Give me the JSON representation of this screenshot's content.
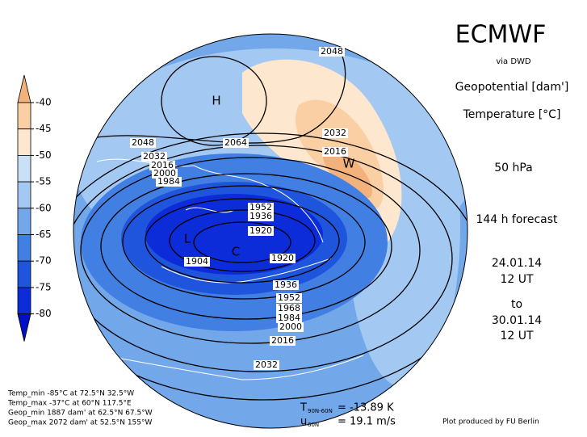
{
  "header": {
    "title": "ECMWF",
    "source": "via DWD",
    "fields": [
      "Geopotential [dam']",
      "Temperature [°C]"
    ],
    "level": "50 hPa",
    "forecast": "144 h forecast",
    "init_date": "24.01.14",
    "init_time": "12 UT",
    "to": "to",
    "valid_date": "30.01.14",
    "valid_time": "12 UT"
  },
  "colorbar": {
    "ticks": [
      -40,
      -45,
      -50,
      -55,
      -60,
      -65,
      -70,
      -75,
      -80
    ],
    "colors": [
      "#f3b27c",
      "#fbcfa4",
      "#fde8cf",
      "#c9e0f6",
      "#a3c8f1",
      "#72a7ea",
      "#427fe2",
      "#1f55dd",
      "#0b2cd8",
      "#0010c8"
    ]
  },
  "contour_labels": [
    2048,
    2064,
    2048,
    2032,
    2016,
    2000,
    1984,
    2032,
    2016,
    1952,
    1936,
    1920,
    1904,
    1920,
    1936,
    1952,
    1968,
    1984,
    2000,
    2016,
    2032
  ],
  "markers": [
    "H",
    "W",
    "L",
    "C"
  ],
  "stats": [
    "Temp_min -85°C at 72.5°N 32.5°W",
    "Temp_max -37°C at 60°N 117.5°E",
    "Geop_min 1887 dam' at 62.5°N 67.5°W",
    "Geop_max 2072 dam' at 52.5°N 155°W"
  ],
  "diagnostics": [
    {
      "symbol": "T",
      "sub": "90N-60N",
      "value": "= -13.89 K"
    },
    {
      "symbol": "u",
      "sub": "60N",
      "value": "= 19.1 m/s"
    }
  ],
  "credit": "Plot produced by FU Berlin"
}
